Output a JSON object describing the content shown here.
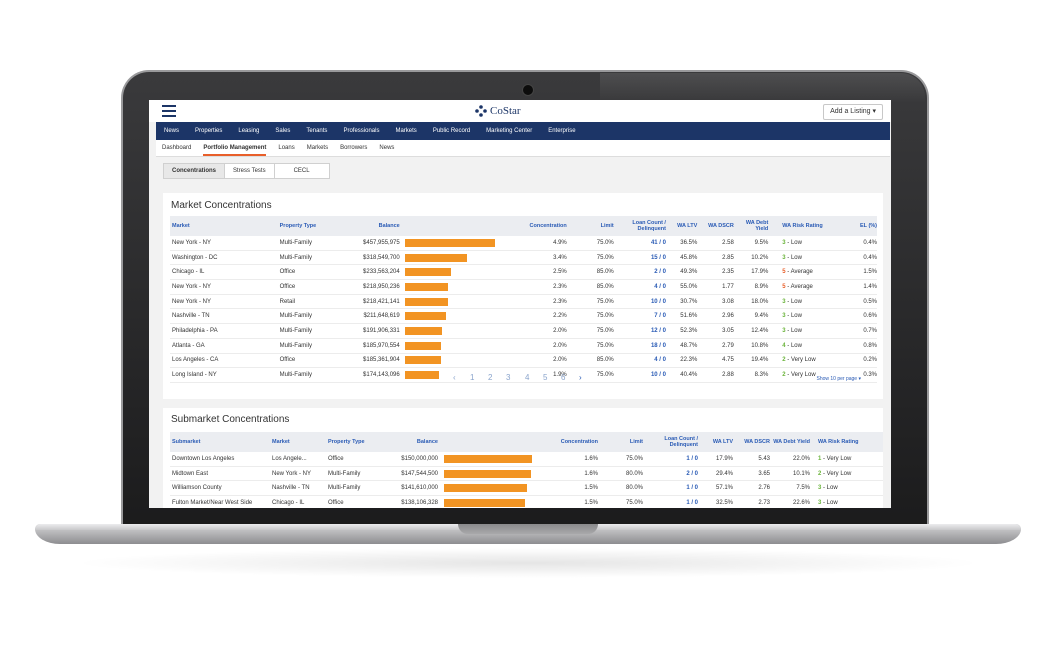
{
  "app": {
    "logo_text": "CoStar",
    "add_listing": "Add a Listing ▾"
  },
  "main_nav": [
    "News",
    "Properties",
    "Leasing",
    "Sales",
    "Tenants",
    "Professionals",
    "Markets",
    "Public Record",
    "Marketing Center",
    "Enterprise"
  ],
  "sub_nav": [
    "Dashboard",
    "Portfolio Management",
    "Loans",
    "Markets",
    "Borrowers",
    "News"
  ],
  "sub_nav_active": "Portfolio Management",
  "tabs": [
    "Concentrations",
    "Stress Tests",
    "CECL"
  ],
  "tab_active": "Concentrations",
  "colors": {
    "nav": "#1c3567",
    "accent": "#e85f2a",
    "bar": "#f29423",
    "link": "#2a5bb5",
    "rating_low": "#6bb43b",
    "rating_avg": "#e85f2a"
  },
  "market": {
    "title": "Market Concentrations",
    "headers": [
      "Market",
      "Property Type",
      "Balance",
      "Concentration",
      "Limit",
      "Loan Count / Delinquent",
      "WA LTV",
      "WA DSCR",
      "WA Debt Yield",
      "WA Risk Rating",
      "EL (%)"
    ],
    "rows": [
      {
        "market": "New York - NY",
        "type": "Multi-Family",
        "balance": "$457,955,975",
        "bar": 1.0,
        "conc": "4.9%",
        "limit": "75.0%",
        "count": "41 / 0",
        "ltv": "36.5%",
        "dscr": "2.58",
        "dy": "9.5%",
        "rating_num": "3",
        "rating": " - Low",
        "rating_color": "#6bb43b",
        "el": "0.4%"
      },
      {
        "market": "Washington - DC",
        "type": "Multi-Family",
        "balance": "$318,549,700",
        "bar": 0.695,
        "conc": "3.4%",
        "limit": "75.0%",
        "count": "15 / 0",
        "ltv": "45.8%",
        "dscr": "2.85",
        "dy": "10.2%",
        "rating_num": "3",
        "rating": " - Low",
        "rating_color": "#6bb43b",
        "el": "0.4%"
      },
      {
        "market": "Chicago - IL",
        "type": "Office",
        "balance": "$233,563,204",
        "bar": 0.51,
        "conc": "2.5%",
        "limit": "85.0%",
        "count": "2 / 0",
        "ltv": "49.3%",
        "dscr": "2.35",
        "dy": "17.9%",
        "rating_num": "5",
        "rating": " - Average",
        "rating_color": "#e85f2a",
        "el": "1.5%"
      },
      {
        "market": "New York - NY",
        "type": "Office",
        "balance": "$218,950,236",
        "bar": 0.478,
        "conc": "2.3%",
        "limit": "85.0%",
        "count": "4 / 0",
        "ltv": "55.0%",
        "dscr": "1.77",
        "dy": "8.9%",
        "rating_num": "5",
        "rating": " - Average",
        "rating_color": "#e85f2a",
        "el": "1.4%"
      },
      {
        "market": "New York - NY",
        "type": "Retail",
        "balance": "$218,421,141",
        "bar": 0.477,
        "conc": "2.3%",
        "limit": "75.0%",
        "count": "10 / 0",
        "ltv": "30.7%",
        "dscr": "3.08",
        "dy": "18.0%",
        "rating_num": "3",
        "rating": " - Low",
        "rating_color": "#6bb43b",
        "el": "0.5%"
      },
      {
        "market": "Nashville - TN",
        "type": "Multi-Family",
        "balance": "$211,648,619",
        "bar": 0.462,
        "conc": "2.2%",
        "limit": "75.0%",
        "count": "7 / 0",
        "ltv": "51.6%",
        "dscr": "2.96",
        "dy": "9.4%",
        "rating_num": "3",
        "rating": " - Low",
        "rating_color": "#6bb43b",
        "el": "0.6%"
      },
      {
        "market": "Philadelphia - PA",
        "type": "Multi-Family",
        "balance": "$191,906,331",
        "bar": 0.419,
        "conc": "2.0%",
        "limit": "75.0%",
        "count": "12 / 0",
        "ltv": "52.3%",
        "dscr": "3.05",
        "dy": "12.4%",
        "rating_num": "3",
        "rating": " - Low",
        "rating_color": "#6bb43b",
        "el": "0.7%"
      },
      {
        "market": "Atlanta - GA",
        "type": "Multi-Family",
        "balance": "$185,970,554",
        "bar": 0.406,
        "conc": "2.0%",
        "limit": "75.0%",
        "count": "18 / 0",
        "ltv": "48.7%",
        "dscr": "2.79",
        "dy": "10.8%",
        "rating_num": "4",
        "rating": " - Low",
        "rating_color": "#6bb43b",
        "el": "0.8%"
      },
      {
        "market": "Los Angeles - CA",
        "type": "Office",
        "balance": "$185,361,904",
        "bar": 0.405,
        "conc": "2.0%",
        "limit": "85.0%",
        "count": "4 / 0",
        "ltv": "22.3%",
        "dscr": "4.75",
        "dy": "19.4%",
        "rating_num": "2",
        "rating": " - Very Low",
        "rating_color": "#6bb43b",
        "el": "0.2%"
      },
      {
        "market": "Long Island - NY",
        "type": "Multi-Family",
        "balance": "$174,143,096",
        "bar": 0.38,
        "conc": "1.9%",
        "limit": "75.0%",
        "count": "10 / 0",
        "ltv": "40.4%",
        "dscr": "2.88",
        "dy": "8.3%",
        "rating_num": "2",
        "rating": " - Very Low",
        "rating_color": "#6bb43b",
        "el": "0.3%"
      }
    ],
    "pages": [
      "1",
      "2",
      "3",
      "4",
      "5",
      "6"
    ],
    "per_page": "Show 10 per page ▾"
  },
  "submarket": {
    "title": "Submarket Concentrations",
    "headers": [
      "Submarket",
      "Market",
      "Property Type",
      "Balance",
      "Concentration",
      "Limit",
      "Loan Count / Delinquent",
      "WA LTV",
      "WA DSCR",
      "WA Debt Yield",
      "WA Risk Rating"
    ],
    "rows": [
      {
        "sub": "Downtown Los Angeles",
        "market": "Los Angele...",
        "type": "Office",
        "balance": "$150,000,000",
        "bar": 1.0,
        "conc": "1.6%",
        "limit": "75.0%",
        "count": "1 / 0",
        "ltv": "17.9%",
        "dscr": "5.43",
        "dy": "22.0%",
        "rating_num": "1",
        "rating": " - Very Low",
        "rating_color": "#6bb43b"
      },
      {
        "sub": "Midtown East",
        "market": "New York - NY",
        "type": "Multi-Family",
        "balance": "$147,544,500",
        "bar": 0.984,
        "conc": "1.6%",
        "limit": "80.0%",
        "count": "2 / 0",
        "ltv": "29.4%",
        "dscr": "3.65",
        "dy": "10.1%",
        "rating_num": "2",
        "rating": " - Very Low",
        "rating_color": "#6bb43b"
      },
      {
        "sub": "Williamson County",
        "market": "Nashville - TN",
        "type": "Multi-Family",
        "balance": "$141,610,000",
        "bar": 0.944,
        "conc": "1.5%",
        "limit": "80.0%",
        "count": "1 / 0",
        "ltv": "57.1%",
        "dscr": "2.76",
        "dy": "7.5%",
        "rating_num": "3",
        "rating": " - Low",
        "rating_color": "#6bb43b"
      },
      {
        "sub": "Fulton Market/Near West Side",
        "market": "Chicago - IL",
        "type": "Office",
        "balance": "$138,106,328",
        "bar": 0.921,
        "conc": "1.5%",
        "limit": "75.0%",
        "count": "1 / 0",
        "ltv": "32.5%",
        "dscr": "2.73",
        "dy": "22.6%",
        "rating_num": "3",
        "rating": " - Low",
        "rating_color": "#6bb43b"
      }
    ]
  }
}
